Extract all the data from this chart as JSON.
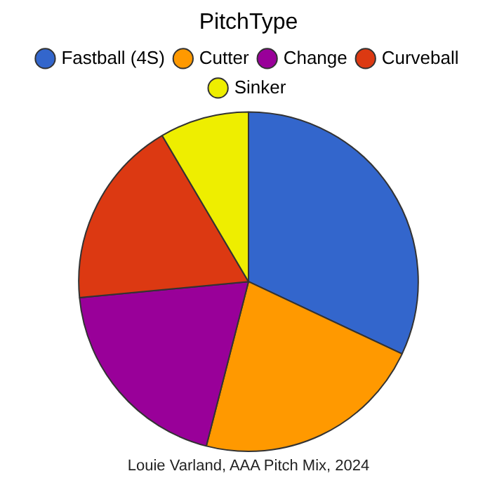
{
  "chart_data": {
    "type": "pie",
    "legend_title": "PitchType",
    "legend": "top",
    "categories": [
      "Fastball (4S)",
      "Cutter",
      "Change",
      "Curveball",
      "Sinker"
    ],
    "values": [
      32,
      22,
      19.5,
      18,
      8.5
    ],
    "colors": [
      "#3366cc",
      "#ff9900",
      "#990099",
      "#dc3912",
      "#eeee00"
    ],
    "annotations": [
      "Louie Varland, AAA Pitch Mix, 2024"
    ]
  }
}
